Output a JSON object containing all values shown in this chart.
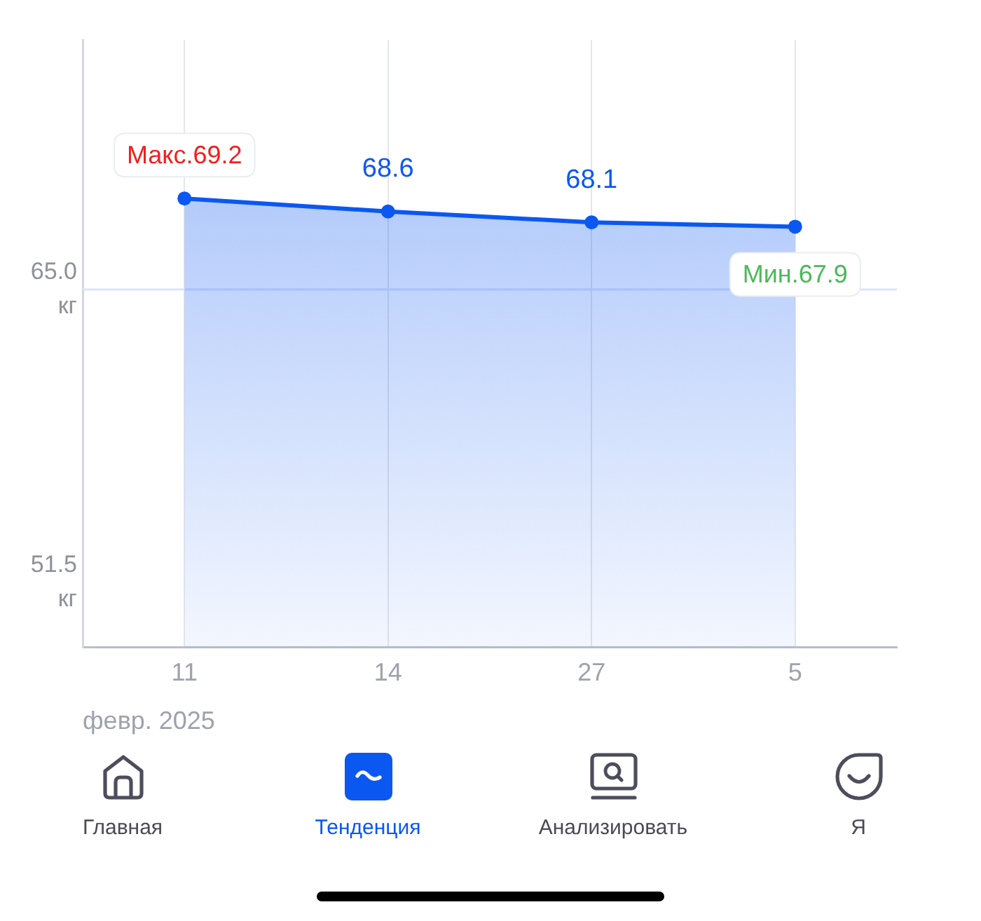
{
  "chart_data": {
    "type": "area",
    "categories": [
      "11",
      "14",
      "27",
      "5"
    ],
    "xlabel": "февр. 2025",
    "series": [
      {
        "color": "#0b57f2",
        "values": [
          69.2,
          68.6,
          68.1,
          67.9
        ],
        "value_labels": [
          "Макс.69.2",
          "68.6",
          "68.1",
          "Мин.67.9"
        ]
      }
    ],
    "ylim": [
      48.5,
      76.5
    ],
    "yticks": [
      {
        "value": 65,
        "label": "65.0 кг"
      },
      {
        "value": 51.5,
        "label": "51.5 кг"
      }
    ],
    "grid": "x",
    "marker": "circle",
    "ref_lines": [
      {
        "axis": "y",
        "value": 65,
        "color": "#dbe5fb"
      }
    ],
    "annotations": [
      "Главная",
      "Тенденция",
      "Анализировать",
      "Я"
    ]
  }
}
